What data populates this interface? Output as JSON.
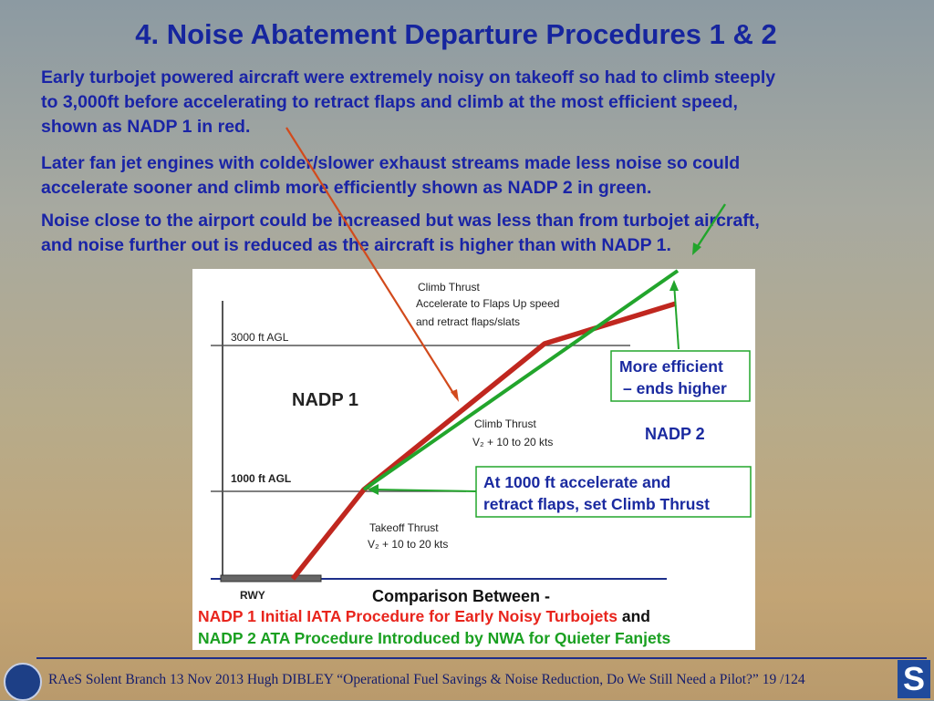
{
  "slide": {
    "title": "4. Noise Abatement Departure Procedures 1 & 2",
    "paragraphs": [
      [
        "Early turbojet powered aircraft were extremely noisy on takeoff so had to climb steeply",
        "to 3,000ft  before accelerating to retract flaps and climb at the most efficient speed,",
        "shown as NADP 1 in red."
      ],
      [
        "Later fan jet engines with colder/slower exhaust streams made less noise so could",
        "accelerate sooner and climb more efficiently shown as NADP 2 in green."
      ],
      [
        "Noise close to the airport could be increased but was less than from turbojet aircraft,",
        "and noise further out is reduced as the aircraft is higher than with NADP 1."
      ]
    ]
  },
  "diagram": {
    "label_3000": "3000 ft AGL",
    "label_1000": "1000 ft AGL",
    "label_rwy": "RWY",
    "nadp1": "NADP 1",
    "nadp2": "NADP 2",
    "climb_top": [
      "Climb Thrust",
      "Accelerate to Flaps Up speed",
      "and retract flaps/slats"
    ],
    "climb_mid": [
      "Climb Thrust",
      "V₂  +  10 to 20 kts"
    ],
    "takeoff": [
      "Takeoff Thrust",
      "V₂  +  10 to 20 kts"
    ],
    "efficient_box": [
      "More efficient",
      "– ends higher"
    ],
    "accel_box": [
      "At 1000 ft accelerate and",
      "retract flaps, set Climb Thrust"
    ],
    "comparison": "Comparison Between -",
    "line_red": "NADP 1 Initial IATA Procedure for Early Noisy Turbojets",
    "line_and": " and",
    "line_green": "NADP 2 ATA Procedure Introduced by NWA for Quieter Fanjets",
    "colors": {
      "red_path": "#c0271f",
      "green_path": "#22a52c",
      "text_red": "#e8251d",
      "text_green": "#1aa021"
    }
  },
  "footer": {
    "text": "RAeS Solent Branch 13 Nov 2013 Hugh DIBLEY  “Operational Fuel Savings & Noise Reduction, Do We Still Need a Pilot?”  19 /124",
    "logo_right_letter": "S"
  }
}
